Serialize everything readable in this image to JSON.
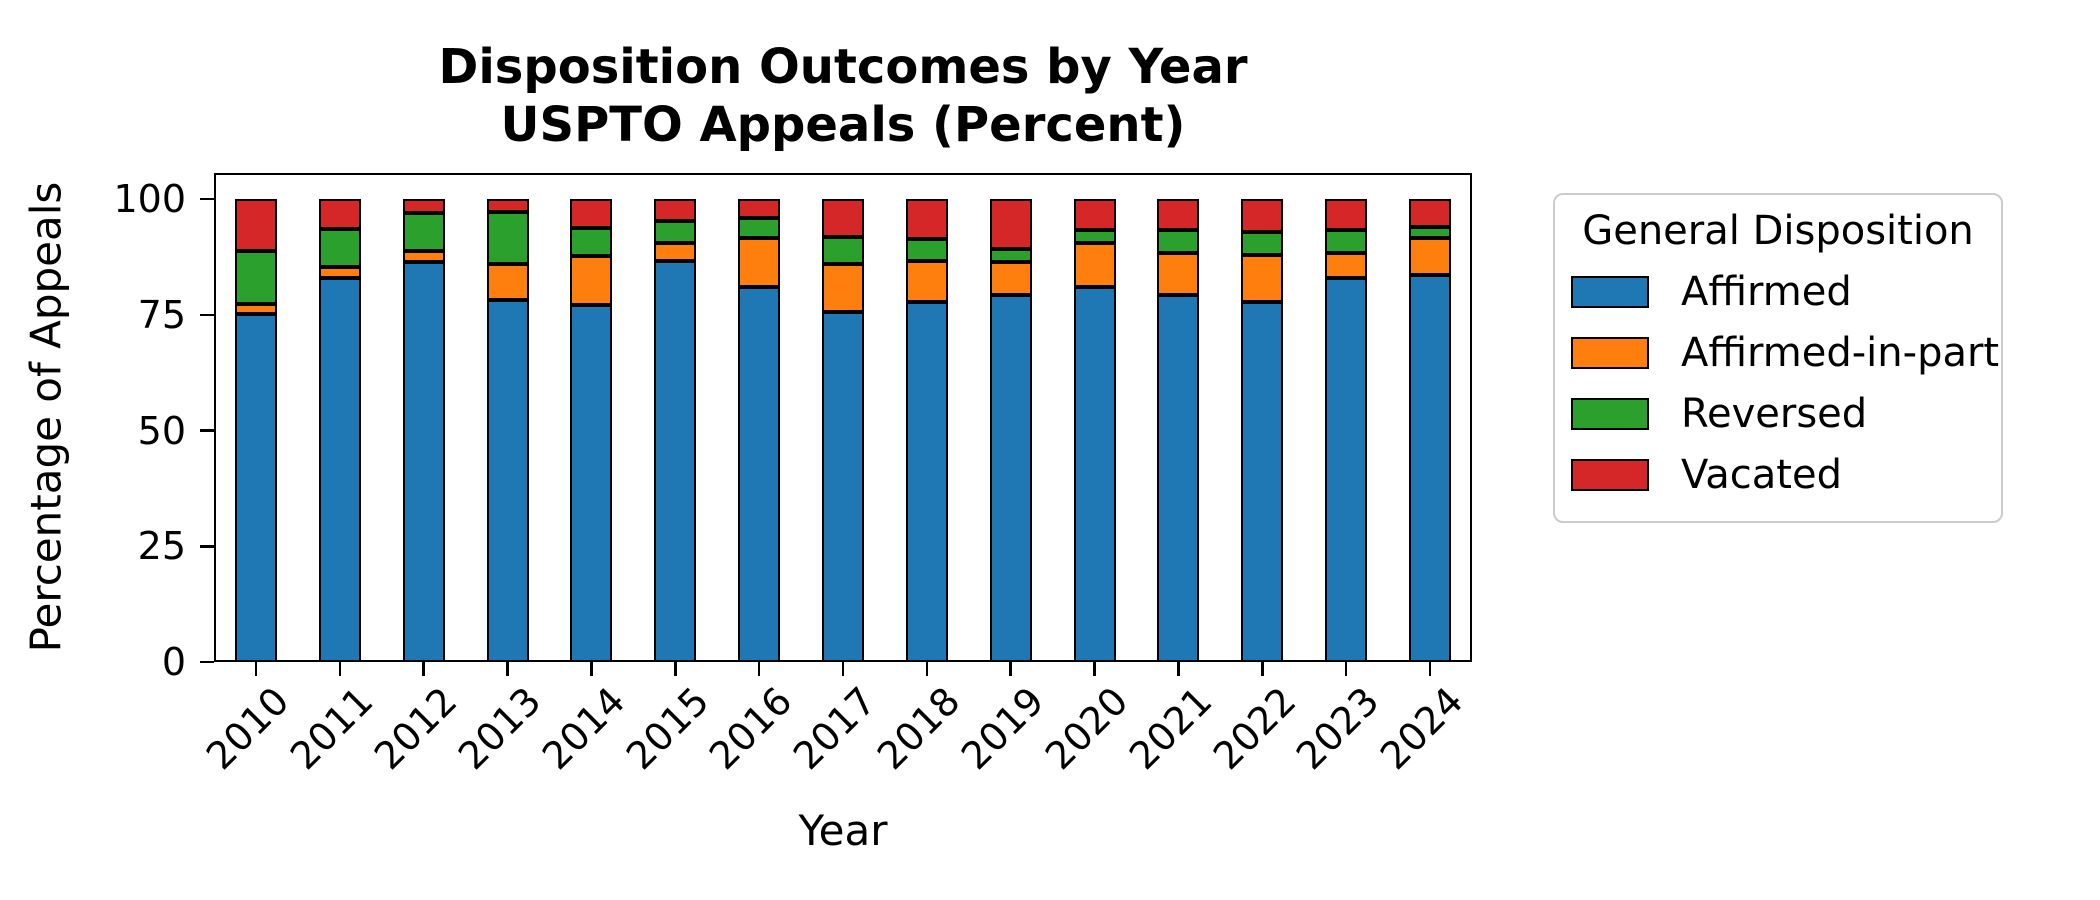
{
  "figure": {
    "title_line1": "Disposition Outcomes by Year",
    "title_line2": "USPTO Appeals (Percent)"
  },
  "chart_data": {
    "type": "bar",
    "stacked": true,
    "title": "Disposition Outcomes by Year\nUSPTO Appeals (Percent)",
    "xlabel": "Year",
    "ylabel": "Percentage of Appeals",
    "ylim": [
      0,
      105
    ],
    "yticks": [
      "0",
      "25",
      "50",
      "75",
      "100"
    ],
    "grid": false,
    "categories": [
      "2010",
      "2011",
      "2012",
      "2013",
      "2014",
      "2015",
      "2016",
      "2017",
      "2018",
      "2019",
      "2020",
      "2021",
      "2022",
      "2023",
      "2024"
    ],
    "series": [
      {
        "name": "Affirmed",
        "color": "#1f77b4",
        "values": [
          75.2,
          83.0,
          86.3,
          78.1,
          77.2,
          86.6,
          81.0,
          75.5,
          77.8,
          79.3,
          81.0,
          79.2,
          77.8,
          83.0,
          83.5
        ]
      },
      {
        "name": "Affirmed-in-part",
        "color": "#ff7f0e",
        "values": [
          2.2,
          2.4,
          2.4,
          7.8,
          10.5,
          3.8,
          10.5,
          10.5,
          8.9,
          7.0,
          9.6,
          9.1,
          10.0,
          5.4,
          8.0
        ]
      },
      {
        "name": "Reversed",
        "color": "#2ca02c",
        "values": [
          11.4,
          8.2,
          8.2,
          11.2,
          6.0,
          4.9,
          4.4,
          5.8,
          4.6,
          2.8,
          2.7,
          5.1,
          5.0,
          4.9,
          2.5
        ]
      },
      {
        "name": "Vacated",
        "color": "#d62728",
        "values": [
          11.2,
          6.4,
          3.1,
          2.9,
          6.3,
          4.7,
          4.1,
          8.2,
          8.7,
          10.9,
          6.7,
          6.6,
          7.2,
          6.7,
          6.0
        ]
      }
    ],
    "legend": {
      "title": "General Disposition",
      "position": "right"
    },
    "colors": {
      "bar_edge": "#000000",
      "axis": "#000000",
      "legend_border": "#cccccc",
      "background": "#ffffff"
    }
  }
}
